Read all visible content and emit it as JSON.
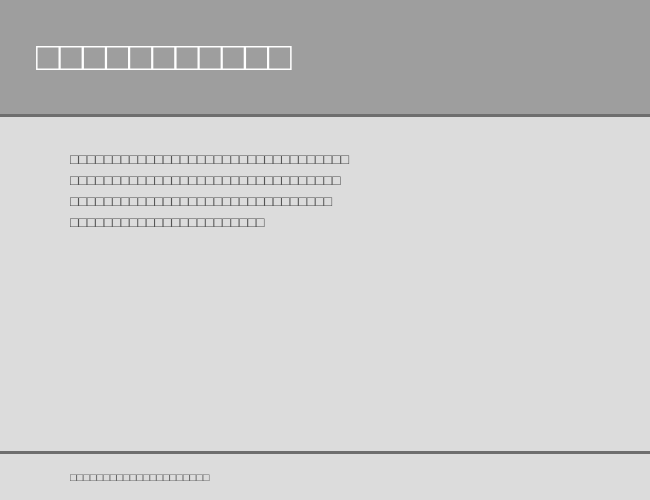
{
  "header": {
    "title": "□□□□□□□□□□□"
  },
  "main": {
    "paragraph_lines": [
      "□□□□□□□□□□□□□□□□□□□□□□□□□□□□□□□□□",
      "□□□□□□□□□□□□□□□□□□□□□□□□□□□□□□□□",
      "□□□□□□□□□□□□□□□□□□□□□□□□□□□□□□□",
      "□□□□□□□□□□□□□□□□□□□□□□□"
    ]
  },
  "footer": {
    "text": "□□□□□□□□□□□□□□□□□□□□□"
  },
  "colors": {
    "header_bg": "#9e9e9e",
    "main_bg": "#dcdcdc",
    "footer_bg": "#dcdcdc",
    "divider": "#6e6e6e",
    "header_text": "#ffffff",
    "body_text": "#4a4a4a"
  }
}
